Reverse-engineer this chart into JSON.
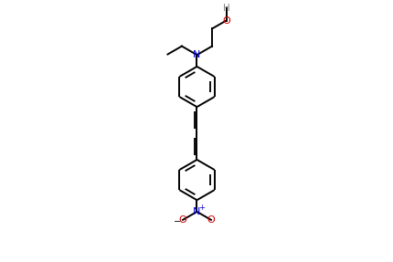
{
  "bg_color": "#ffffff",
  "bond_color": "#000000",
  "N_color": "#0000cd",
  "O_color": "#cc0000",
  "H_color": "#888888",
  "lw": 1.4,
  "figsize": [
    4.31,
    2.87
  ],
  "dpi": 100,
  "xlim": [
    -2.5,
    2.5
  ],
  "ylim": [
    -3.8,
    2.8
  ]
}
